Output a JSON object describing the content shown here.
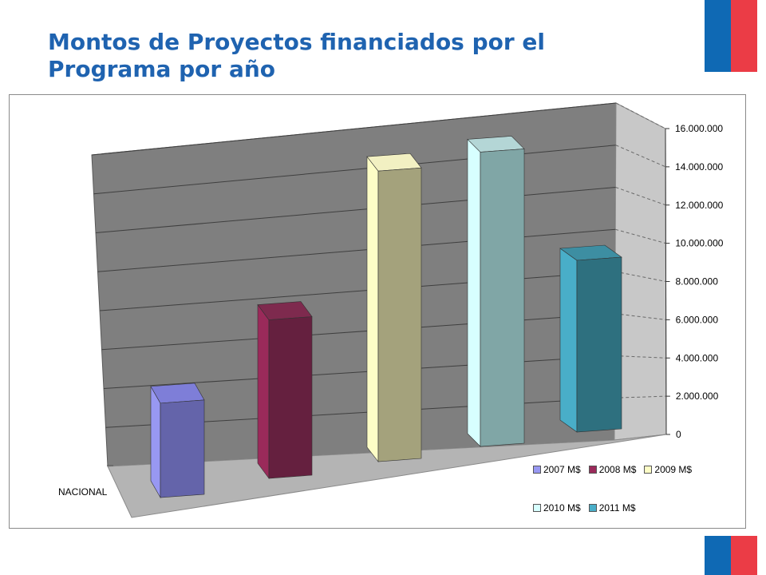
{
  "slide": {
    "title": "Montos de Proyectos financiados por el Programa por año",
    "title_color": "#1f63b0",
    "flag_colors": {
      "blue": "#0f69b4",
      "red": "#eb3c46"
    }
  },
  "chart_data": {
    "type": "bar",
    "style": "3d-column",
    "title": "",
    "categories": [
      "NACIONAL"
    ],
    "series": [
      {
        "name": "2007 M$",
        "values": [
          5000000
        ],
        "front": "#6464aa",
        "side": "#9898f2",
        "top": "#7e7ed8"
      },
      {
        "name": "2008 M$",
        "values": [
          8400000
        ],
        "front": "#65203f",
        "side": "#9a2a5a",
        "top": "#7e2a4e"
      },
      {
        "name": "2009 M$",
        "values": [
          15400000
        ],
        "front": "#a4a27c",
        "side": "#fdfdc6",
        "top": "#f2f0c2"
      },
      {
        "name": "2010 M$",
        "values": [
          15600000
        ],
        "front": "#80a6a6",
        "side": "#d7ffff",
        "top": "#b4d6d6"
      },
      {
        "name": "2011 M$",
        "values": [
          9100000
        ],
        "front": "#2e707f",
        "side": "#49aec8",
        "top": "#3d8ea2"
      }
    ],
    "y_ticks": [
      "0",
      "2.000.000",
      "4.000.000",
      "6.000.000",
      "8.000.000",
      "10.000.000",
      "12.000.000",
      "14.000.000",
      "16.000.000"
    ],
    "ylim": [
      0,
      16000000
    ],
    "grid": true,
    "legend_position": "bottom-right",
    "colors": {
      "back_wall": "#7f7f7f",
      "side_wall": "#c8c8c8",
      "floor": "#b4b4b4",
      "grid": "#3f3f3f"
    }
  }
}
